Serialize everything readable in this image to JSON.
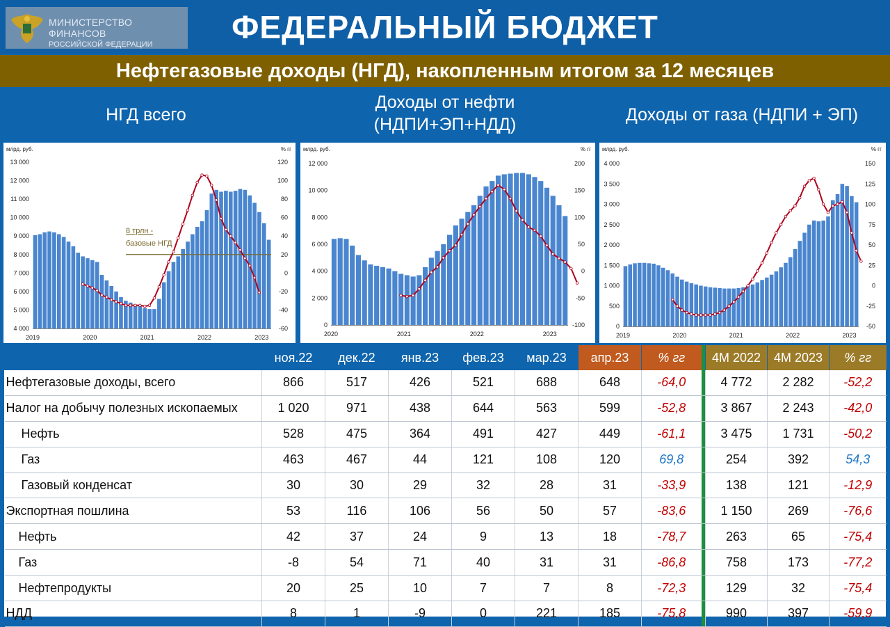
{
  "header": {
    "ministry_line1": "МИНИСТЕРСТВО ФИНАНСОВ",
    "ministry_line2": "РОССИЙСКОЙ ФЕДЕРАЦИИ",
    "title": "ФЕДЕРАЛЬНЫЙ БЮДЖЕТ",
    "subtitle": "Нефтегазовые доходы (НГД), накопленным итогом за 12 месяцев"
  },
  "charts": {
    "c1_title": "НГД всего",
    "c2_title_line1": "Доходы от нефти",
    "c2_title_line2": "(НДПИ+ЭП+НДД)",
    "c3_title": "Доходы от газа (НДПИ + ЭП)",
    "left_unit": "млрд. руб.",
    "right_unit": "% гг",
    "annotation_line1": "8 трлн -",
    "annotation_line2": "базовые НГД"
  },
  "chart_data": [
    {
      "type": "bar",
      "title": "НГД всего",
      "ylabel": "млрд. руб.",
      "y2label": "% гг",
      "ylim": [
        4000,
        13000
      ],
      "y2lim": [
        -60,
        120
      ],
      "yticks": [
        "4 000",
        "5 000",
        "6 000",
        "7 000",
        "8 000",
        "9 000",
        "10 000",
        "11 000",
        "12 000",
        "13 000"
      ],
      "y2ticks": [
        "-60",
        "-40",
        "-20",
        "0",
        "20",
        "40",
        "60",
        "80",
        "100",
        "120"
      ],
      "xticks": [
        {
          "label": "2019",
          "i": 0
        },
        {
          "label": "2020",
          "i": 12
        },
        {
          "label": "2021",
          "i": 24
        },
        {
          "label": "2022",
          "i": 36
        },
        {
          "label": "2023",
          "i": 48
        }
      ],
      "reference_line": 8000,
      "series": [
        {
          "kind": "bar",
          "values": [
            9050,
            9100,
            9200,
            9250,
            9200,
            9100,
            8950,
            8700,
            8450,
            8100,
            7900,
            7800,
            7700,
            7600,
            6900,
            6600,
            6300,
            6000,
            5700,
            5500,
            5400,
            5300,
            5200,
            5100,
            5050,
            5050,
            5600,
            6500,
            7100,
            7600,
            7900,
            8300,
            8700,
            9100,
            9500,
            9800,
            10400,
            11300,
            11500,
            11400,
            11450,
            11400,
            11450,
            11550,
            11500,
            11200,
            10800,
            10300,
            9700,
            8800
          ]
        },
        {
          "kind": "line",
          "start": 10,
          "values": [
            -12,
            -14,
            -16,
            -19,
            -24,
            -26,
            -29,
            -31,
            -33,
            -35,
            -35,
            -35,
            -35,
            -36,
            -35,
            -27,
            -15,
            -2,
            12,
            23,
            38,
            53,
            68,
            84,
            98,
            106,
            105,
            95,
            79,
            59,
            47,
            40,
            33,
            25,
            16,
            8,
            -5,
            -21
          ]
        }
      ]
    },
    {
      "type": "bar",
      "title": "Доходы от нефти (НДПИ+ЭП+НДД)",
      "ylabel": "млрд. руб.",
      "y2label": "% гг",
      "ylim": [
        0,
        12000
      ],
      "y2lim": [
        -100,
        200
      ],
      "yticks": [
        "0",
        "2 000",
        "4 000",
        "6 000",
        "8 000",
        "10 000",
        "12 000"
      ],
      "y2ticks": [
        "-100",
        "-50",
        "0",
        "50",
        "100",
        "150",
        "200"
      ],
      "xticks": [
        {
          "label": "2020",
          "i": 0
        },
        {
          "label": "2021",
          "i": 12
        },
        {
          "label": "2022",
          "i": 24
        },
        {
          "label": "2023",
          "i": 36
        }
      ],
      "series": [
        {
          "kind": "bar",
          "values": [
            6400,
            6450,
            6400,
            5900,
            5200,
            4800,
            4500,
            4400,
            4300,
            4200,
            4000,
            3800,
            3700,
            3600,
            3700,
            4300,
            5000,
            5500,
            6000,
            6700,
            7400,
            7900,
            8400,
            8900,
            9600,
            10300,
            10700,
            11100,
            11200,
            11250,
            11300,
            11300,
            11200,
            11000,
            10700,
            10200,
            9600,
            8900,
            8100
          ]
        },
        {
          "kind": "line",
          "start": 11,
          "values": [
            -45,
            -47,
            -45,
            -33,
            -17,
            -2,
            8,
            25,
            38,
            48,
            68,
            88,
            105,
            120,
            135,
            148,
            160,
            152,
            135,
            112,
            95,
            82,
            76,
            65,
            48,
            32,
            24,
            17,
            5,
            -22
          ]
        }
      ]
    },
    {
      "type": "bar",
      "title": "Доходы от газа (НДПИ + ЭП)",
      "ylabel": "млрд. руб.",
      "y2label": "% гг",
      "ylim": [
        0,
        4000
      ],
      "y2lim": [
        -50,
        150
      ],
      "yticks": [
        "0",
        "500",
        "1 000",
        "1 500",
        "2 000",
        "2 500",
        "3 000",
        "3 500",
        "4 000"
      ],
      "y2ticks": [
        "-50",
        "-25",
        "0",
        "25",
        "50",
        "75",
        "100",
        "125",
        "150"
      ],
      "xticks": [
        {
          "label": "2019",
          "i": 0
        },
        {
          "label": "2020",
          "i": 12
        },
        {
          "label": "2021",
          "i": 24
        },
        {
          "label": "2022",
          "i": 36
        },
        {
          "label": "2023",
          "i": 48
        }
      ],
      "series": [
        {
          "kind": "bar",
          "values": [
            1480,
            1520,
            1550,
            1560,
            1560,
            1550,
            1540,
            1500,
            1440,
            1380,
            1300,
            1220,
            1150,
            1100,
            1060,
            1030,
            1000,
            980,
            960,
            950,
            940,
            930,
            930,
            930,
            940,
            960,
            990,
            1030,
            1080,
            1140,
            1200,
            1270,
            1350,
            1450,
            1560,
            1700,
            1900,
            2100,
            2300,
            2500,
            2600,
            2580,
            2600,
            2700,
            3100,
            3250,
            3500,
            3450,
            3200,
            3050
          ]
        },
        {
          "kind": "line",
          "start": 10,
          "values": [
            -17,
            -25,
            -30,
            -33,
            -35,
            -36,
            -36,
            -36,
            -36,
            -35,
            -33,
            -30,
            -25,
            -20,
            -14,
            -7,
            0,
            8,
            18,
            28,
            40,
            53,
            65,
            75,
            85,
            92,
            98,
            108,
            122,
            129,
            132,
            118,
            100,
            90,
            98,
            100,
            103,
            90,
            65,
            43,
            30
          ]
        }
      ]
    }
  ],
  "table": {
    "headers": [
      "ноя.22",
      "дек.22",
      "янв.23",
      "фев.23",
      "мар.23",
      "апр.23",
      "% гг",
      "4М 2022",
      "4М 2023",
      "% гг"
    ],
    "rows": [
      {
        "label": "Нефтегазовые доходы, всего",
        "indent": 0,
        "cells": [
          "866",
          "517",
          "426",
          "521",
          "688",
          "648",
          "-64,0",
          "4 772",
          "2 282",
          "-52,2"
        ]
      },
      {
        "label": "Налог на добычу полезных ископаемых",
        "indent": 0,
        "cells": [
          "1 020",
          "971",
          "438",
          "644",
          "563",
          "599",
          "-52,8",
          "3 867",
          "2 243",
          "-42,0"
        ]
      },
      {
        "label": "Нефть",
        "indent": 1,
        "cells": [
          "528",
          "475",
          "364",
          "491",
          "427",
          "449",
          "-61,1",
          "3 475",
          "1 731",
          "-50,2"
        ]
      },
      {
        "label": "Газ",
        "indent": 1,
        "cells": [
          "463",
          "467",
          "44",
          "121",
          "108",
          "120",
          "69,8",
          "254",
          "392",
          "54,3"
        ]
      },
      {
        "label": "Газовый конденсат",
        "indent": 1,
        "cells": [
          "30",
          "30",
          "29",
          "32",
          "28",
          "31",
          "-33,9",
          "138",
          "121",
          "-12,9"
        ]
      },
      {
        "label": "Экспортная пошлина",
        "indent": 0,
        "cells": [
          "53",
          "116",
          "106",
          "56",
          "50",
          "57",
          "-83,6",
          "1 150",
          "269",
          "-76,6"
        ]
      },
      {
        "label": "Нефть",
        "indent": 2,
        "cells": [
          "42",
          "37",
          "24",
          "9",
          "13",
          "18",
          "-78,7",
          "263",
          "65",
          "-75,4"
        ]
      },
      {
        "label": "Газ",
        "indent": 2,
        "cells": [
          "-8",
          "54",
          "71",
          "40",
          "31",
          "31",
          "-86,8",
          "758",
          "173",
          "-77,2"
        ]
      },
      {
        "label": "Нефтепродукты",
        "indent": 2,
        "cells": [
          "20",
          "25",
          "10",
          "7",
          "7",
          "8",
          "-72,3",
          "129",
          "32",
          "-75,4"
        ]
      },
      {
        "label": "НДД",
        "indent": 0,
        "cells": [
          "8",
          "1",
          "-9",
          "0",
          "221",
          "185",
          "-75,8",
          "990",
          "397",
          "-59,9"
        ]
      }
    ]
  }
}
